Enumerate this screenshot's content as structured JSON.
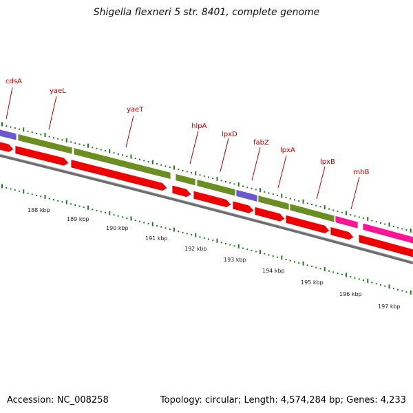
{
  "title": "Shigella flexneri 5 str. 8401, complete genome",
  "footer": {
    "accession": "Accession: NC_008258",
    "summary": "Topology: circular; Length: 4,574,284 bp; Genes: 4,233"
  },
  "colors": {
    "backbone": "#777777",
    "cds": "#ee0000",
    "cog_olive": "#6b8e23",
    "cog_purple": "#6a5acd",
    "cog_pink": "#ff1493",
    "gene_label": "#c00000",
    "tick": "#1e7b1e"
  },
  "genes": [
    {
      "name": "cdsA"
    },
    {
      "name": "yaeL"
    },
    {
      "name": "yaeT"
    },
    {
      "name": "hlpA"
    },
    {
      "name": "lpxD"
    },
    {
      "name": "fabZ"
    },
    {
      "name": "lpxA"
    },
    {
      "name": "lpxB"
    },
    {
      "name": "rnhB"
    }
  ],
  "kbp_labels": [
    "188 kbp",
    "189 kbp",
    "190 kbp",
    "191 kbp",
    "192 kbp",
    "193 kbp",
    "194 kbp",
    "195 kbp",
    "196 kbp",
    "197 kbp"
  ]
}
